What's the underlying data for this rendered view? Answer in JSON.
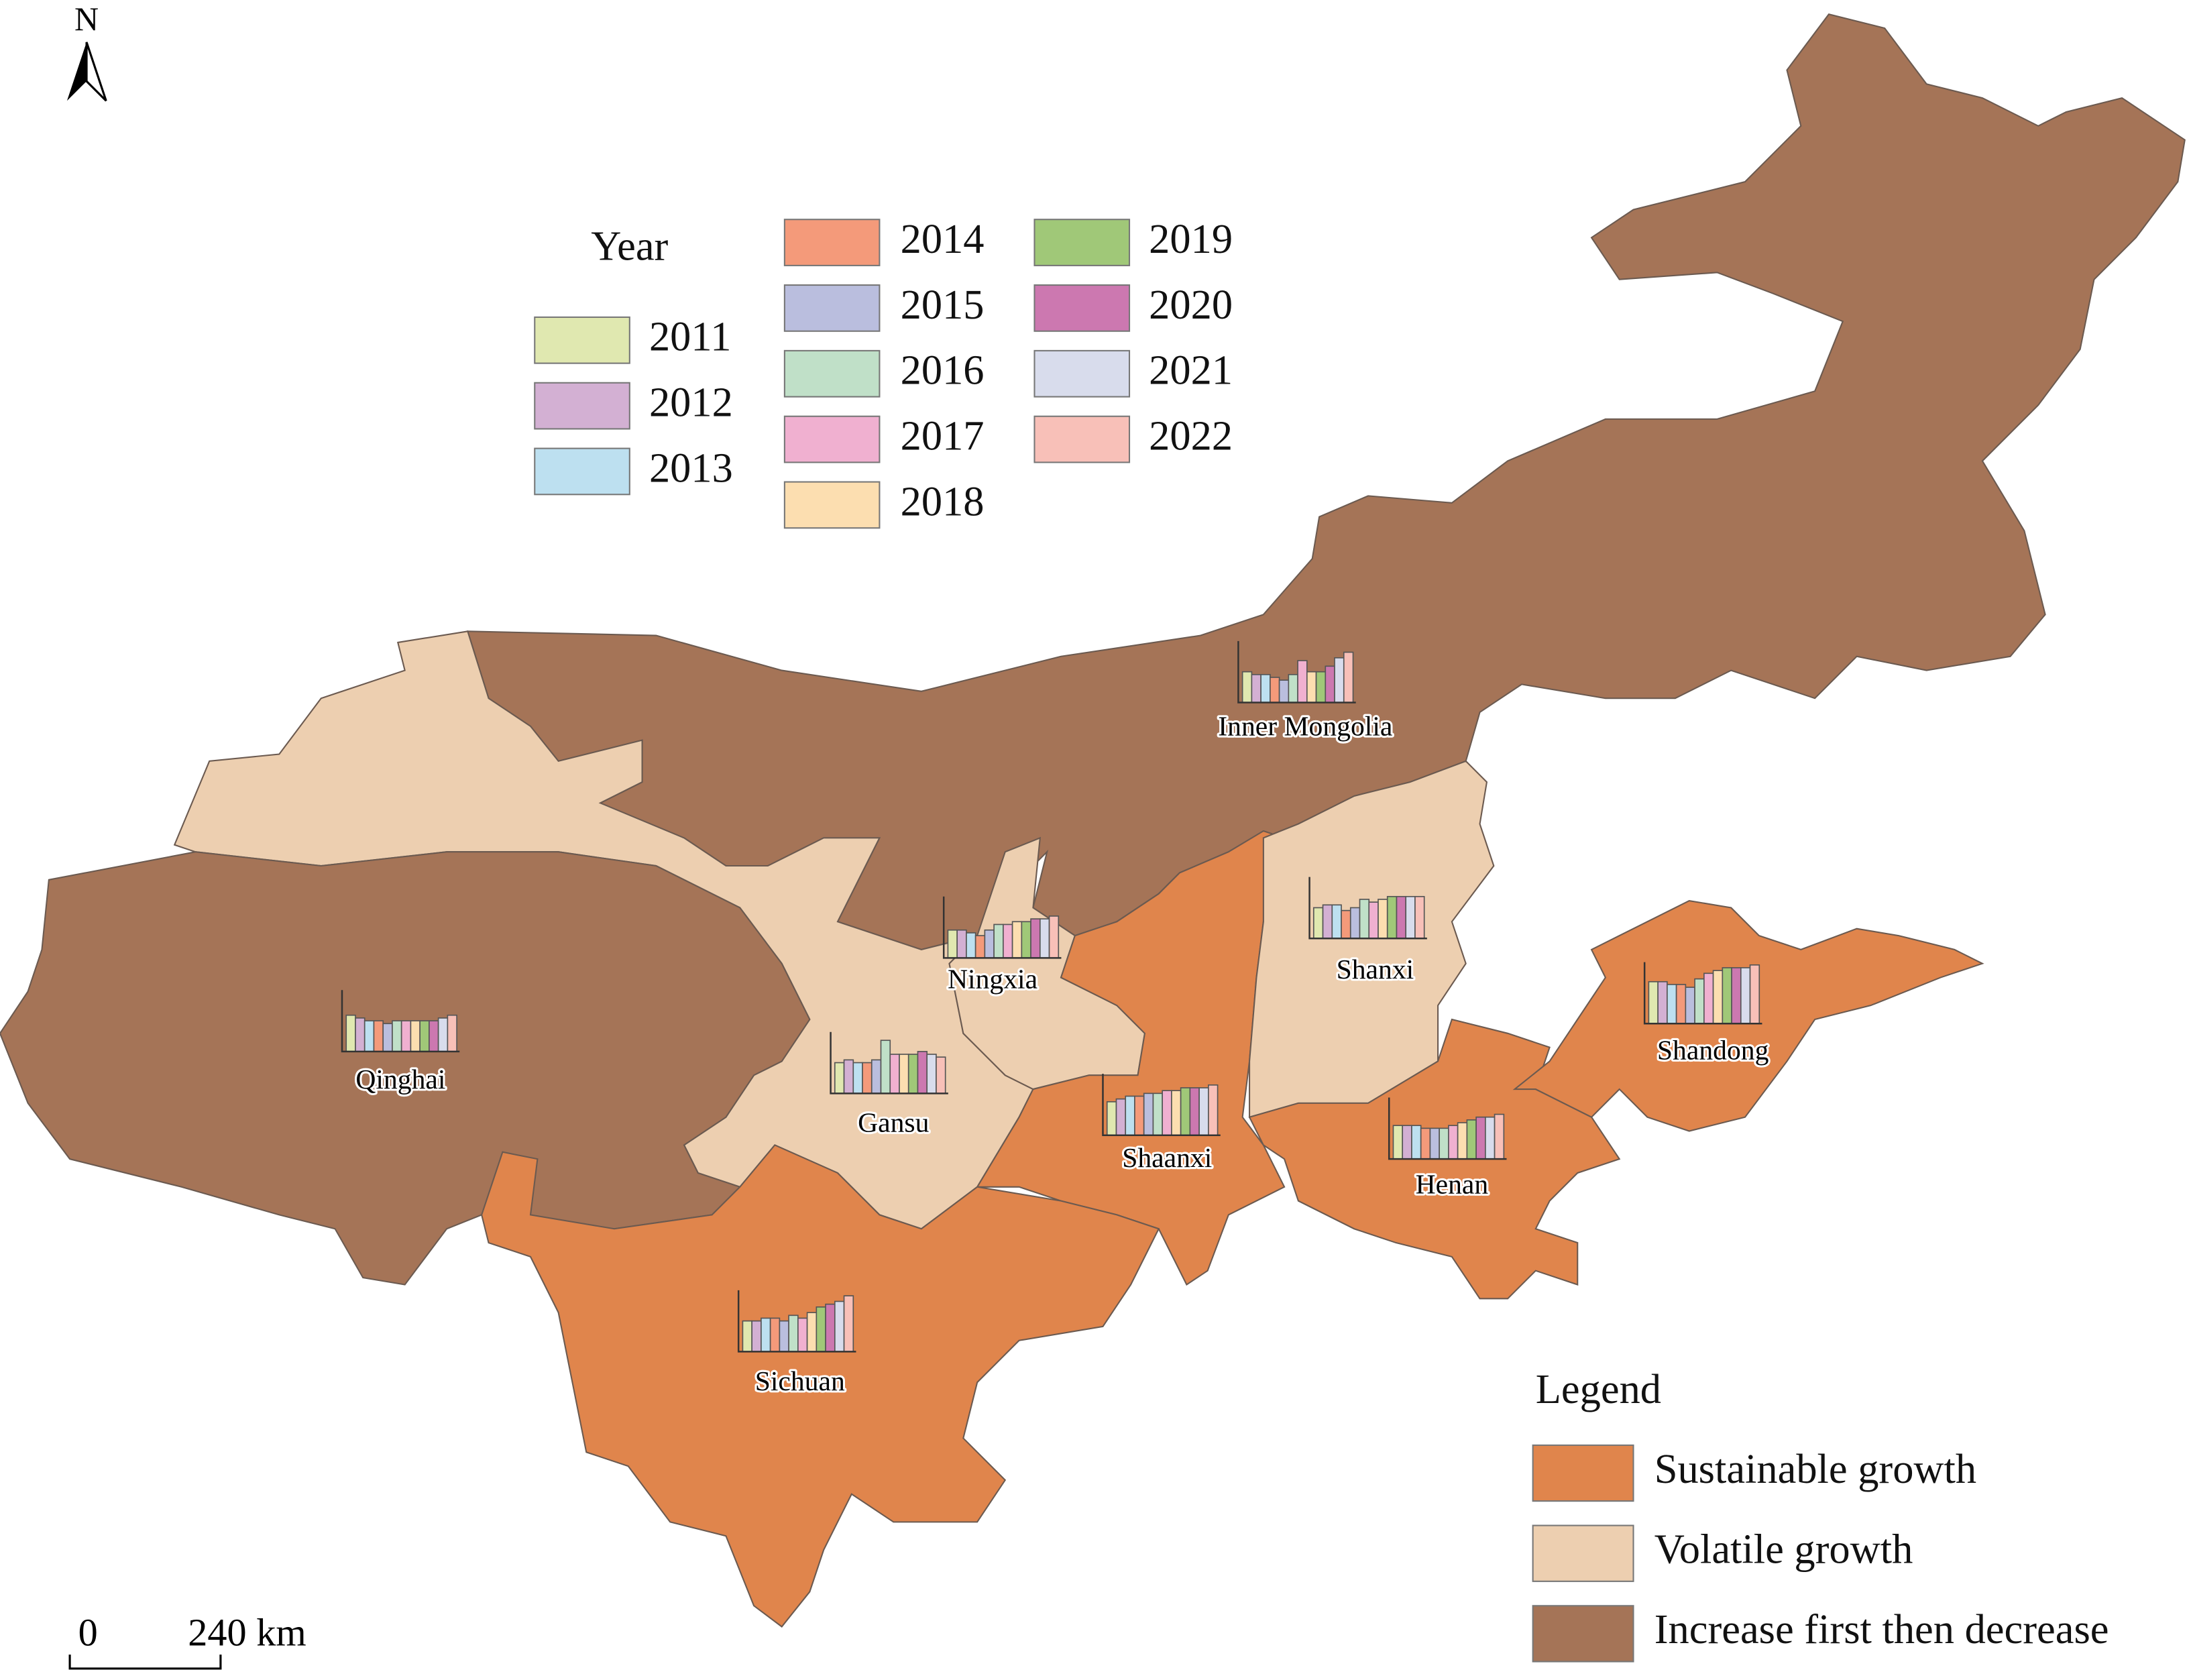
{
  "chart_data": {
    "type": "map",
    "north": "N",
    "scalebar": {
      "labels": [
        "0",
        "240 km"
      ]
    },
    "year_legend": {
      "title": "Year",
      "items": [
        {
          "name": "2011",
          "color": "#e0e8b0"
        },
        {
          "name": "2012",
          "color": "#d3b0d3"
        },
        {
          "name": "2013",
          "color": "#bde0f0"
        },
        {
          "name": "2014",
          "color": "#f49a7a"
        },
        {
          "name": "2015",
          "color": "#babede"
        },
        {
          "name": "2016",
          "color": "#c0e0c8"
        },
        {
          "name": "2017",
          "color": "#f0b0d0"
        },
        {
          "name": "2018",
          "color": "#fcdeb0"
        },
        {
          "name": "2019",
          "color": "#a0c878"
        },
        {
          "name": "2020",
          "color": "#cc78b0"
        },
        {
          "name": "2021",
          "color": "#d8dcec"
        },
        {
          "name": "2022",
          "color": "#f8c0b8"
        }
      ]
    },
    "legend": {
      "title": "Legend",
      "items": [
        {
          "name": "Sustainable growth",
          "color": "#e0854c"
        },
        {
          "name": "Volatile growth",
          "color": "#edcfb0"
        },
        {
          "name": "Increase first then decrease",
          "color": "#a57457"
        }
      ]
    },
    "provinces": [
      {
        "name": "Inner Mongolia",
        "color": "#a57457",
        "values": [
          22,
          20,
          20,
          18,
          16,
          20,
          30,
          22,
          22,
          26,
          32,
          36
        ]
      },
      {
        "name": "Shanxi",
        "color": "#edcfb0",
        "values": [
          22,
          24,
          24,
          20,
          22,
          28,
          26,
          28,
          30,
          30,
          30,
          30
        ]
      },
      {
        "name": "Ningxia",
        "color": "#edcfb0",
        "values": [
          20,
          20,
          18,
          16,
          20,
          24,
          24,
          26,
          26,
          28,
          28,
          30
        ]
      },
      {
        "name": "Qinghai",
        "color": "#a57457",
        "values": [
          26,
          24,
          22,
          22,
          20,
          22,
          22,
          22,
          22,
          22,
          24,
          26
        ]
      },
      {
        "name": "Gansu",
        "color": "#edcfb0",
        "values": [
          22,
          24,
          22,
          22,
          24,
          38,
          28,
          28,
          28,
          30,
          28,
          26
        ]
      },
      {
        "name": "Shaanxi",
        "color": "#e0854c",
        "values": [
          24,
          26,
          28,
          28,
          30,
          30,
          32,
          32,
          34,
          34,
          34,
          36
        ]
      },
      {
        "name": "Shandong",
        "color": "#e0854c",
        "values": [
          30,
          30,
          28,
          28,
          26,
          32,
          36,
          38,
          40,
          40,
          40,
          42
        ]
      },
      {
        "name": "Henan",
        "color": "#e0854c",
        "values": [
          24,
          24,
          24,
          22,
          22,
          22,
          24,
          26,
          28,
          30,
          30,
          32
        ]
      },
      {
        "name": "Sichuan",
        "color": "#e0854c",
        "values": [
          22,
          22,
          24,
          24,
          22,
          26,
          24,
          28,
          32,
          34,
          36,
          40
        ]
      }
    ]
  }
}
